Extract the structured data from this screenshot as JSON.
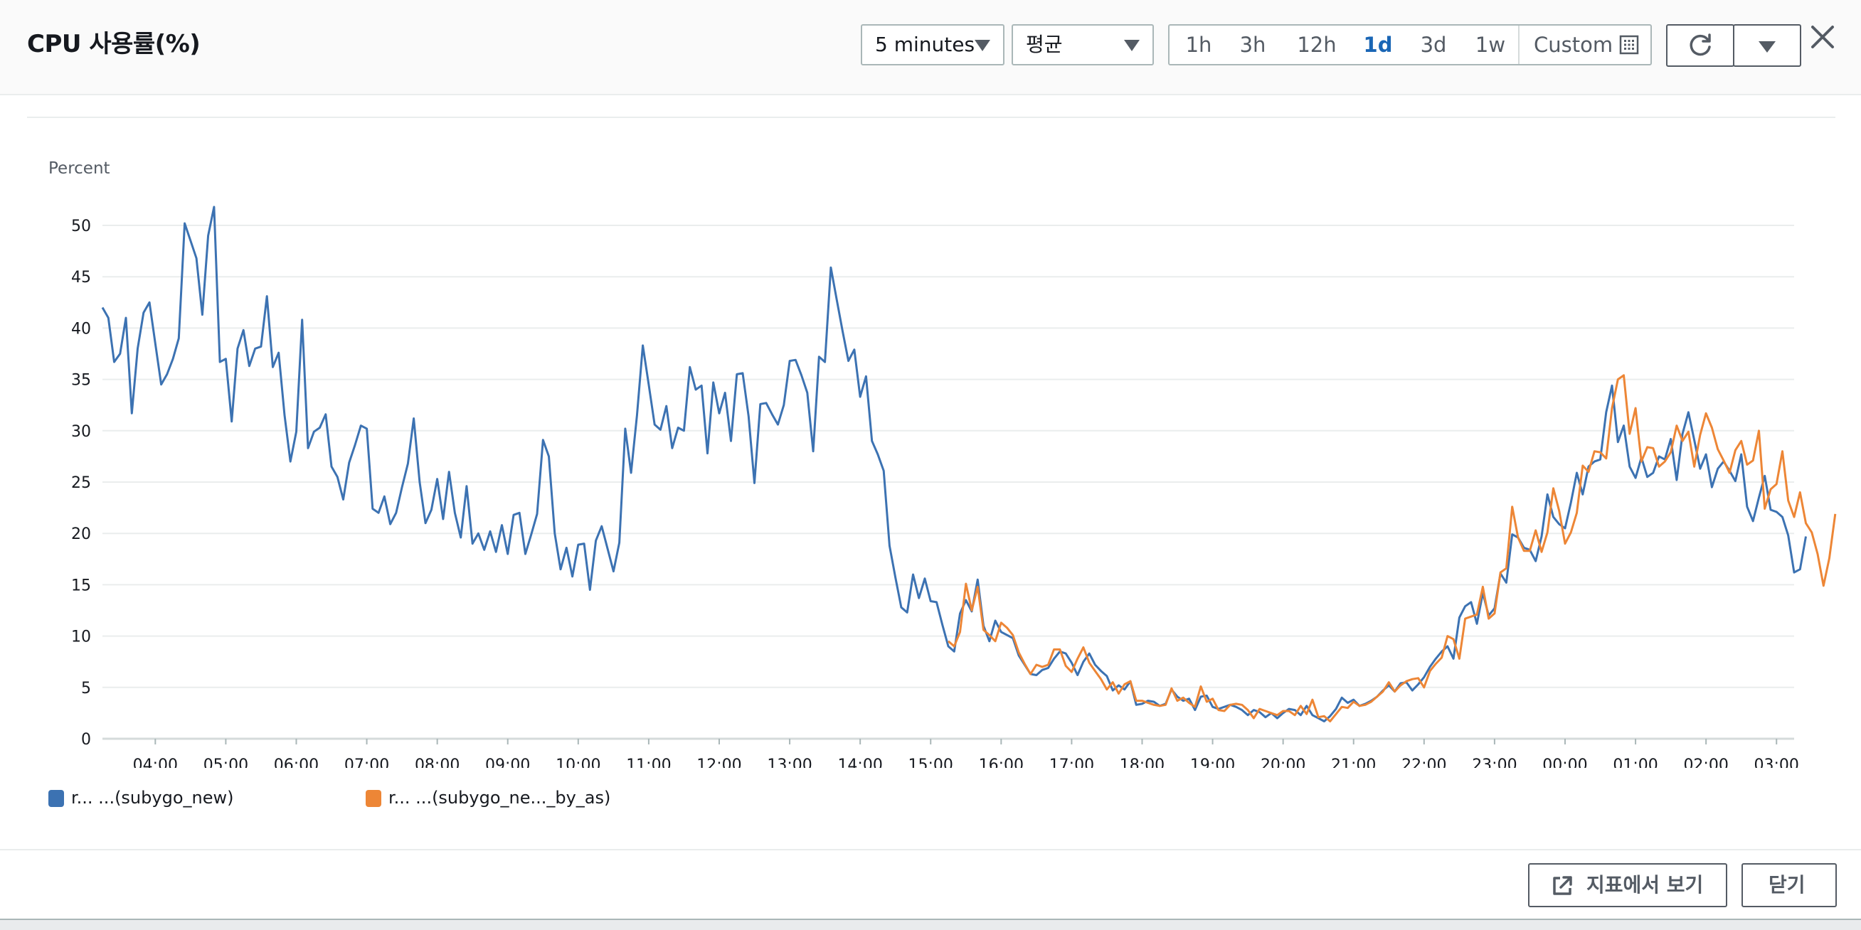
{
  "header": {
    "title": "CPU 사용률(%)",
    "period": "5 minutes",
    "statistic": "평균",
    "ranges": [
      "1h",
      "3h",
      "12h",
      "1d",
      "3d",
      "1w"
    ],
    "active_range": "1d",
    "custom_label": "Custom",
    "icons": {
      "calendar": "calendar-icon",
      "refresh": "refresh-icon",
      "dropdown": "chevron-down-icon",
      "close": "close-icon"
    }
  },
  "legend": {
    "items": [
      {
        "text": "r... ...(subygo_new)",
        "color": "#3c72b2"
      },
      {
        "text": "r... ...(subygo_ne..._by_as)",
        "color": "#ed8636"
      }
    ]
  },
  "footer": {
    "open_metrics_label": "지표에서 보기",
    "close_label": "닫기"
  },
  "colors": {
    "series1": "#3c72b2",
    "series2": "#ed8636",
    "accent": "#1a66b5"
  },
  "chart_data": {
    "type": "line",
    "ylabel": "Percent",
    "ylim": [
      0,
      50
    ],
    "yticks": [
      0,
      5,
      10,
      15,
      20,
      25,
      30,
      35,
      40,
      45,
      50
    ],
    "grid": true,
    "legend_position": "bottom-left",
    "x_start": "03:15",
    "x_end": "03:15",
    "interval_minutes": 5,
    "x_ticks": [
      "04:00",
      "05:00",
      "06:00",
      "07:00",
      "08:00",
      "09:00",
      "10:00",
      "11:00",
      "12:00",
      "13:00",
      "14:00",
      "15:00",
      "16:00",
      "17:00",
      "18:00",
      "19:00",
      "20:00",
      "21:00",
      "22:00",
      "23:00",
      "00:00",
      "01:00",
      "02:00",
      "03:00"
    ],
    "series": [
      {
        "name": "r... ...(subygo_new)",
        "color": "#3c72b2",
        "start": "03:15",
        "values": [
          42,
          41,
          36.7,
          37.5,
          41,
          31.7,
          38,
          41.5,
          42.5,
          38.5,
          34.5,
          35.5,
          37,
          39,
          50.2,
          48.5,
          46.8,
          41.3,
          49,
          51.8,
          36.7,
          37,
          30.9,
          38,
          39.8,
          36.3,
          38,
          38.2,
          43.1,
          36.2,
          37.6,
          31.5,
          27,
          29.9,
          40.8,
          28.3,
          29.9,
          30.3,
          31.6,
          26.5,
          25.5,
          23.3,
          26.9,
          28.6,
          30.5,
          30.2,
          22.4,
          22,
          23.6,
          20.9,
          22,
          24.5,
          26.8,
          31.2,
          25,
          21,
          22.3,
          25.3,
          21.4,
          26,
          22,
          19.6,
          24.6,
          19,
          20,
          18.4,
          20.2,
          18.2,
          20.8,
          18,
          21.8,
          22,
          18,
          19.9,
          21.9,
          29.1,
          27.5,
          20,
          16.5,
          18.6,
          15.8,
          18.9,
          19,
          14.5,
          19.3,
          20.7,
          18.5,
          16.3,
          19.1,
          30.2,
          25.9,
          31.5,
          38.3,
          34.5,
          30.6,
          30.1,
          32.4,
          28.3,
          30.3,
          30,
          36.2,
          34,
          34.4,
          27.8,
          34.7,
          31.7,
          33.7,
          29,
          35.5,
          35.6,
          31.4,
          24.9,
          32.6,
          32.7,
          31.6,
          30.6,
          32.5,
          36.8,
          36.9,
          35.4,
          33.7,
          28,
          37.2,
          36.7,
          45.9,
          42.8,
          39.7,
          36.8,
          37.9,
          33.3,
          35.3,
          29,
          27.7,
          26.1,
          18.8,
          15.7,
          12.8,
          12.3,
          16,
          13.7,
          15.6,
          13.4,
          13.3,
          11.1,
          9,
          8.5,
          12.2,
          13.5,
          12.4,
          15.5,
          11,
          9.5,
          11.5,
          10.4,
          10.1,
          9.8,
          8.1,
          7.2,
          6.3,
          6.2,
          6.7,
          6.9,
          7.8,
          8.5,
          8.3,
          7.4,
          6.2,
          7.5,
          8.3,
          7.2,
          6.6,
          6.1,
          4.7,
          5.2,
          4.8,
          5.6,
          3.3,
          3.4,
          3.7,
          3.6,
          3.2,
          3.4,
          4.8,
          4.1,
          3.7,
          3.9,
          2.8,
          4.1,
          4.2,
          3.1,
          2.9,
          3.1,
          3.3,
          3.1,
          2.8,
          2.3,
          2.8,
          2.6,
          2.1,
          2.5,
          2,
          2.5,
          2.9,
          2.8,
          2.3,
          3.2,
          2.3,
          2,
          1.7,
          2.2,
          2.9,
          4,
          3.5,
          3.8,
          3.2,
          3.4,
          3.7,
          4.1,
          4.7,
          5.2,
          4.6,
          5.4,
          5.5,
          4.7,
          5.3,
          6,
          7,
          7.8,
          8.5,
          9,
          7.8,
          11.8,
          12.9,
          13.3,
          11.2,
          14.2,
          12,
          12.7,
          16.1,
          15.2,
          19.9,
          19.6,
          18.6,
          18.4,
          17.3,
          19.7,
          23.8,
          21.6,
          20.9,
          20.5,
          23,
          25.9,
          23.8,
          26.5,
          27,
          27.2,
          31.8,
          34.4,
          28.9,
          30.5,
          26.5,
          25.4,
          27.4,
          25.5,
          25.9,
          27.5,
          27.2,
          29.2,
          25.2,
          29.7,
          31.8,
          29.1,
          26.3,
          27.7,
          24.5,
          26.3,
          27,
          26.1,
          25.1,
          27.7,
          22.6,
          21.2,
          23.5,
          25.6,
          22.3,
          22.1,
          21.6,
          19.8,
          16.2,
          16.5,
          19.7
        ]
      },
      {
        "name": "r... ...(subygo_ne..._by_as)",
        "color": "#ed8636",
        "start": "15:15",
        "values": [
          9.5,
          9,
          10.4,
          15.1,
          12.5,
          14.8,
          10.6,
          10.1,
          9.5,
          11.3,
          10.8,
          10.1,
          8.4,
          7.3,
          6.3,
          7.2,
          7,
          7.2,
          8.7,
          8.7,
          7.1,
          6.5,
          7.8,
          8.9,
          7.4,
          6.6,
          5.8,
          4.8,
          5.5,
          4.4,
          5.3,
          5.6,
          3.7,
          3.7,
          3.5,
          3.3,
          3.2,
          3.3,
          4.9,
          3.7,
          4,
          3.5,
          3.1,
          5.1,
          3.6,
          3.9,
          2.8,
          2.7,
          3.3,
          3.4,
          3.3,
          2.8,
          2,
          2.9,
          2.7,
          2.5,
          2.3,
          2.7,
          2.7,
          2.3,
          3.2,
          2.4,
          3.8,
          2.1,
          2.2,
          1.7,
          2.4,
          3.1,
          3,
          3.6,
          3.2,
          3.3,
          3.6,
          4.1,
          4.6,
          5.5,
          4.6,
          5.2,
          5.6,
          5.8,
          5.9,
          5,
          6.6,
          7.3,
          7.9,
          10,
          9.7,
          7.8,
          11.7,
          11.9,
          12.1,
          14.8,
          11.7,
          12.2,
          16.2,
          16.6,
          22.6,
          19.6,
          18.3,
          18.3,
          20.3,
          18.2,
          20.1,
          24.4,
          22.2,
          19,
          20.1,
          22,
          26.6,
          26,
          28,
          27.9,
          27.3,
          32.2,
          35,
          35.4,
          29.7,
          32.2,
          27,
          28.4,
          28.3,
          26.5,
          27,
          27.9,
          30.5,
          29,
          29.9,
          26.5,
          29.6,
          31.7,
          30.3,
          28.2,
          27.1,
          25.9,
          28.1,
          29,
          26.7,
          27.1,
          30,
          22.4,
          24.3,
          24.8,
          28,
          23.2,
          21.6,
          24,
          21,
          20.1,
          18,
          14.9,
          17.6,
          21.9
        ]
      }
    ]
  }
}
